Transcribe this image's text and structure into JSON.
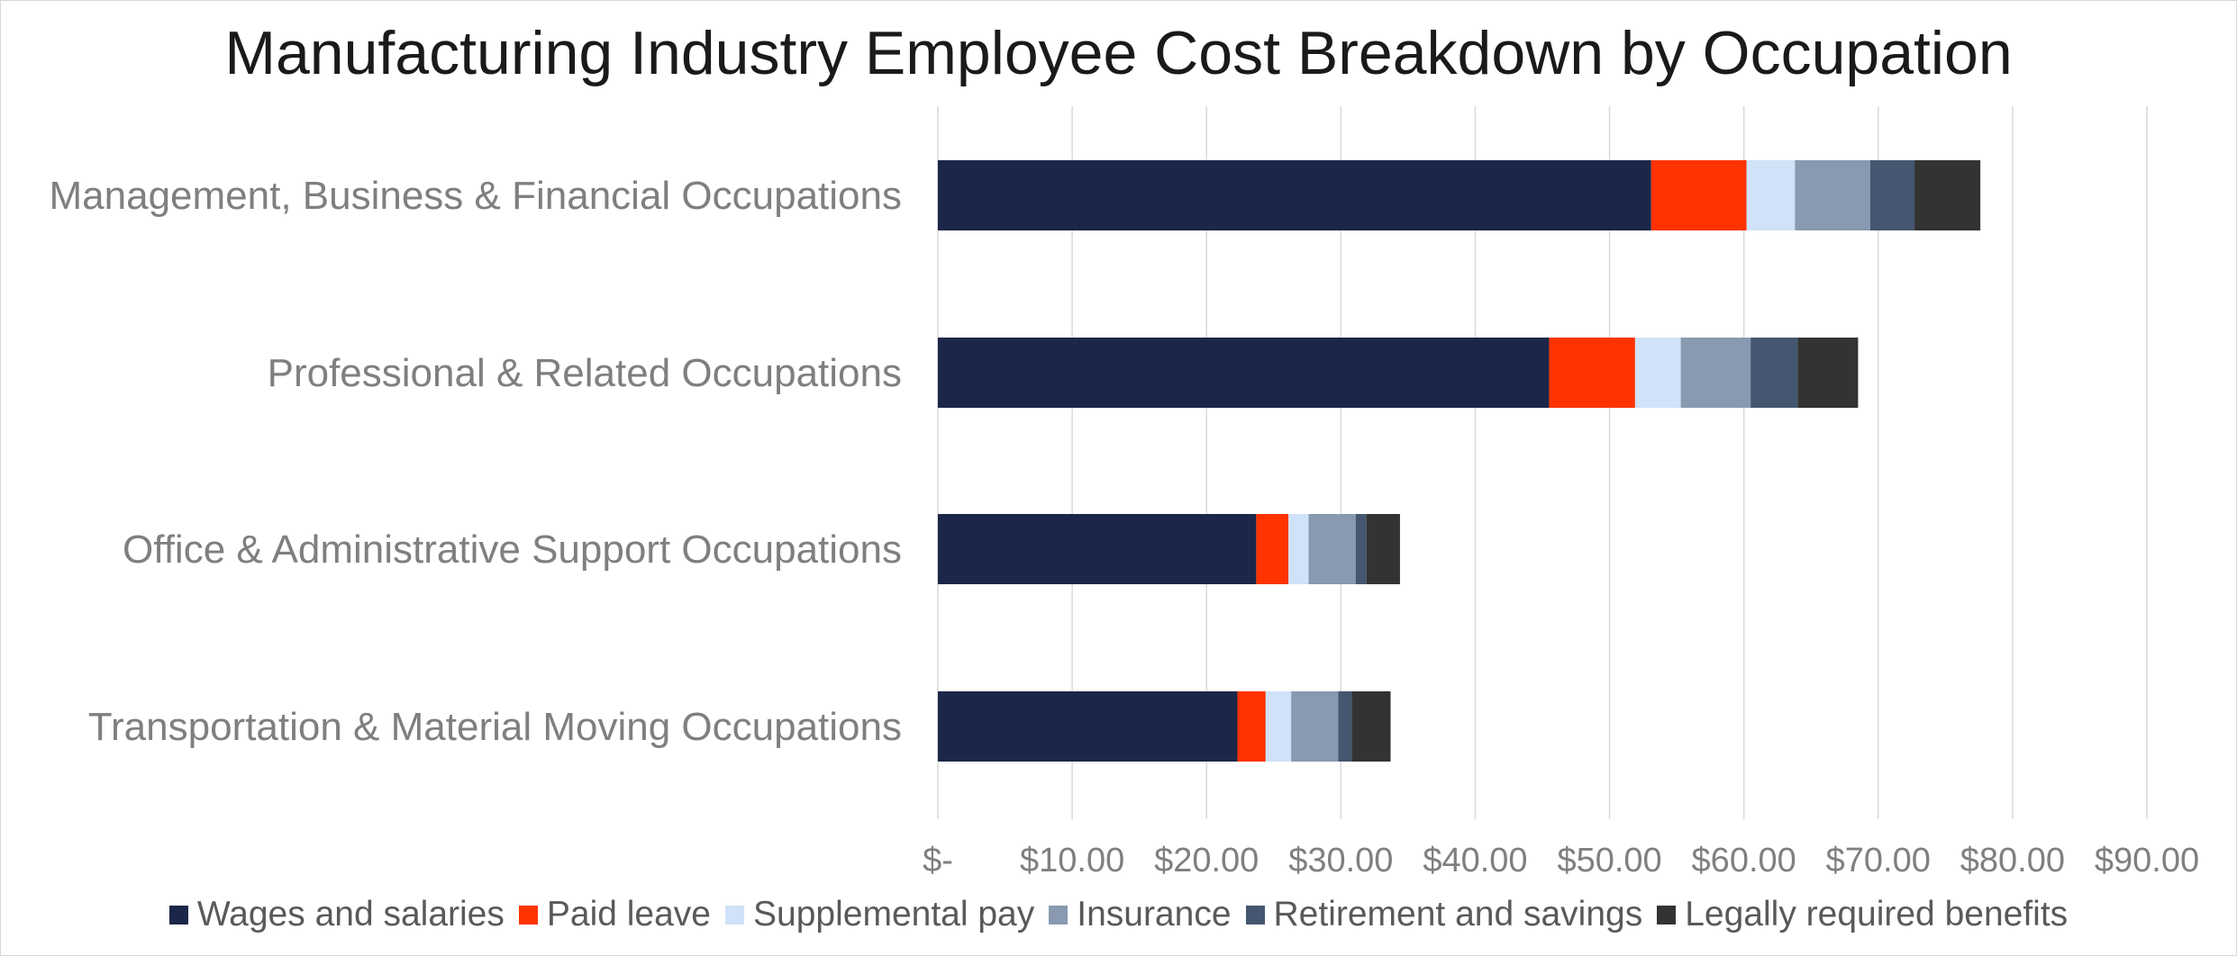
{
  "chart_data": {
    "type": "bar",
    "orientation": "horizontal",
    "stacked": true,
    "title": "Manufacturing Industry Employee Cost Breakdown by Occupation",
    "categories": [
      "Management, Business & Financial Occupations",
      "Professional & Related Occupations",
      "Office & Administrative Support Occupations",
      "Transportation & Material Moving Occupations"
    ],
    "series": [
      {
        "name": "Wages and salaries",
        "color": "#1b2649",
        "values": [
          53.1,
          45.5,
          23.7,
          22.3
        ]
      },
      {
        "name": "Paid leave",
        "color": "#ff3300",
        "values": [
          7.1,
          6.4,
          2.4,
          2.1
        ]
      },
      {
        "name": "Supplemental pay",
        "color": "#cfe2f7",
        "values": [
          3.6,
          3.4,
          1.5,
          1.9
        ]
      },
      {
        "name": "Insurance",
        "color": "#8899b0",
        "values": [
          5.6,
          5.2,
          3.5,
          3.5
        ]
      },
      {
        "name": "Retirement and savings",
        "color": "#445670",
        "values": [
          3.3,
          3.5,
          0.8,
          1.0
        ]
      },
      {
        "name": "Legally required benefits",
        "color": "#333333",
        "values": [
          4.9,
          4.5,
          2.5,
          2.9
        ]
      }
    ],
    "xlim": [
      0,
      90
    ],
    "x_ticks": [
      0,
      10,
      20,
      30,
      40,
      50,
      60,
      70,
      80,
      90
    ],
    "x_tick_labels": [
      "$-",
      "$10.00",
      "$20.00",
      "$30.00",
      "$40.00",
      "$50.00",
      "$60.00",
      "$70.00",
      "$80.00",
      "$90.00"
    ],
    "xlabel": "",
    "ylabel": "",
    "grid": "vertical",
    "legend_position": "bottom"
  }
}
